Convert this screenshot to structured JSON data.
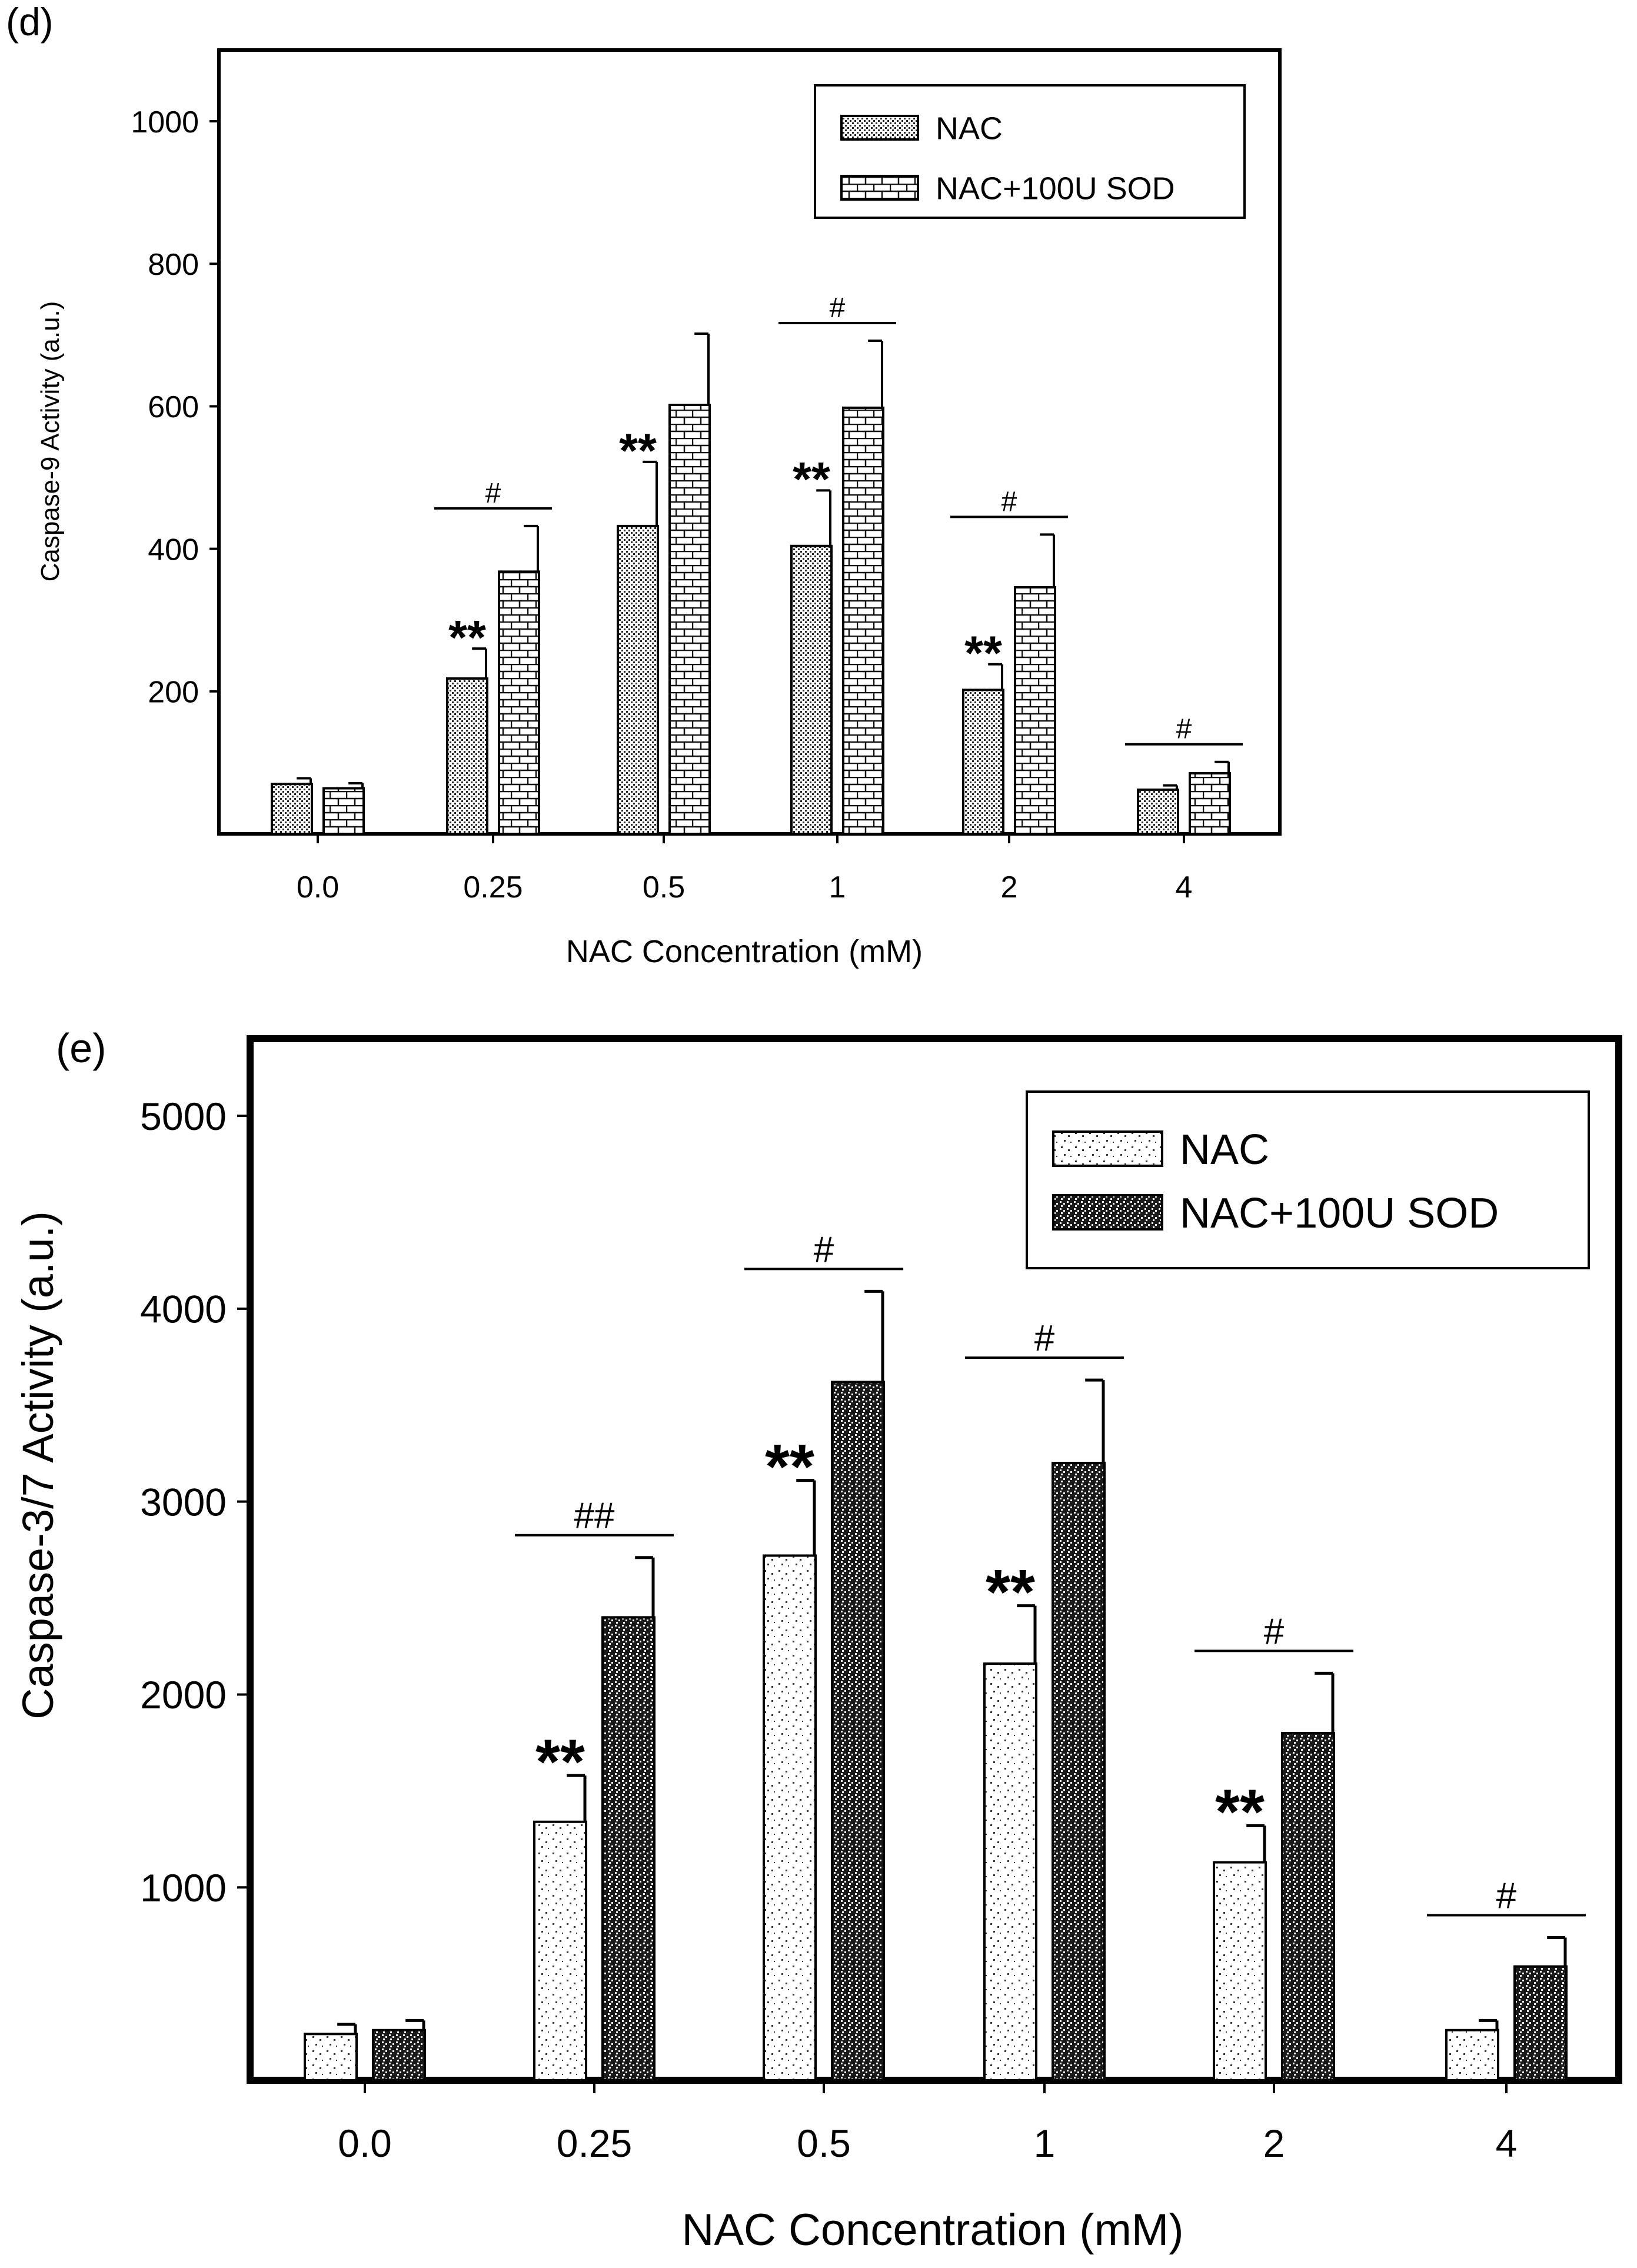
{
  "chart_data": [
    {
      "panel_label": "(d)",
      "type": "bar",
      "categories": [
        "0.0",
        "0.25",
        "0.5",
        "1",
        "2",
        "4"
      ],
      "series": [
        {
          "name": "NAC",
          "values": [
            70,
            218,
            432,
            404,
            202,
            62
          ],
          "errors": [
            8,
            42,
            90,
            78,
            36,
            6
          ],
          "pattern": "stipple"
        },
        {
          "name": "NAC+100U SOD",
          "values": [
            64,
            368,
            602,
            598,
            346,
            85
          ],
          "errors": [
            7,
            64,
            100,
            94,
            74,
            16
          ],
          "pattern": "brick"
        }
      ],
      "ylim": [
        0,
        1100
      ],
      "yticks": [
        200,
        400,
        600,
        800,
        1000
      ],
      "ytick_labels": [
        "200",
        "400",
        "600",
        "800",
        "1000"
      ],
      "xlabel": "NAC Concentration (mM)",
      "ylabel": "Caspase-9 Activity (a.u.)",
      "legend": [
        "NAC",
        "NAC+100U SOD"
      ],
      "legend_position": "top-right",
      "star_annotations": [
        {
          "category": 1,
          "text": "**"
        },
        {
          "category": 2,
          "text": "**"
        },
        {
          "category": 3,
          "text": "**"
        },
        {
          "category": 4,
          "text": "**"
        }
      ],
      "hash_annotations": [
        {
          "category": 1,
          "text": "#"
        },
        {
          "category": 3,
          "text": "#"
        },
        {
          "category": 4,
          "text": "#"
        },
        {
          "category": 5,
          "text": "#"
        }
      ]
    },
    {
      "panel_label": "(e)",
      "type": "bar",
      "categories": [
        "0.0",
        "0.25",
        "0.5",
        "1",
        "2",
        "4"
      ],
      "series": [
        {
          "name": "NAC",
          "values": [
            240,
            1340,
            2720,
            2160,
            1130,
            260
          ],
          "errors": [
            50,
            240,
            390,
            300,
            190,
            50
          ],
          "pattern": "sparse"
        },
        {
          "name": "NAC+100U SOD",
          "values": [
            260,
            2400,
            3620,
            3200,
            1800,
            590
          ],
          "errors": [
            50,
            310,
            470,
            430,
            310,
            150
          ],
          "pattern": "dense"
        }
      ],
      "ylim": [
        0,
        5400
      ],
      "yticks": [
        1000,
        2000,
        3000,
        4000,
        5000
      ],
      "ytick_labels": [
        "1000",
        "2000",
        "3000",
        "4000",
        "5000"
      ],
      "xlabel": "NAC Concentration (mM)",
      "ylabel": "Caspase-3/7 Activity (a.u.)",
      "legend": [
        "NAC",
        "NAC+100U SOD"
      ],
      "legend_position": "top-right",
      "star_annotations": [
        {
          "category": 1,
          "text": "**"
        },
        {
          "category": 2,
          "text": "**"
        },
        {
          "category": 3,
          "text": "**"
        },
        {
          "category": 4,
          "text": "**"
        }
      ],
      "hash_annotations": [
        {
          "category": 1,
          "text": "##"
        },
        {
          "category": 2,
          "text": "#"
        },
        {
          "category": 3,
          "text": "#"
        },
        {
          "category": 4,
          "text": "#"
        },
        {
          "category": 5,
          "text": "#"
        }
      ]
    }
  ]
}
